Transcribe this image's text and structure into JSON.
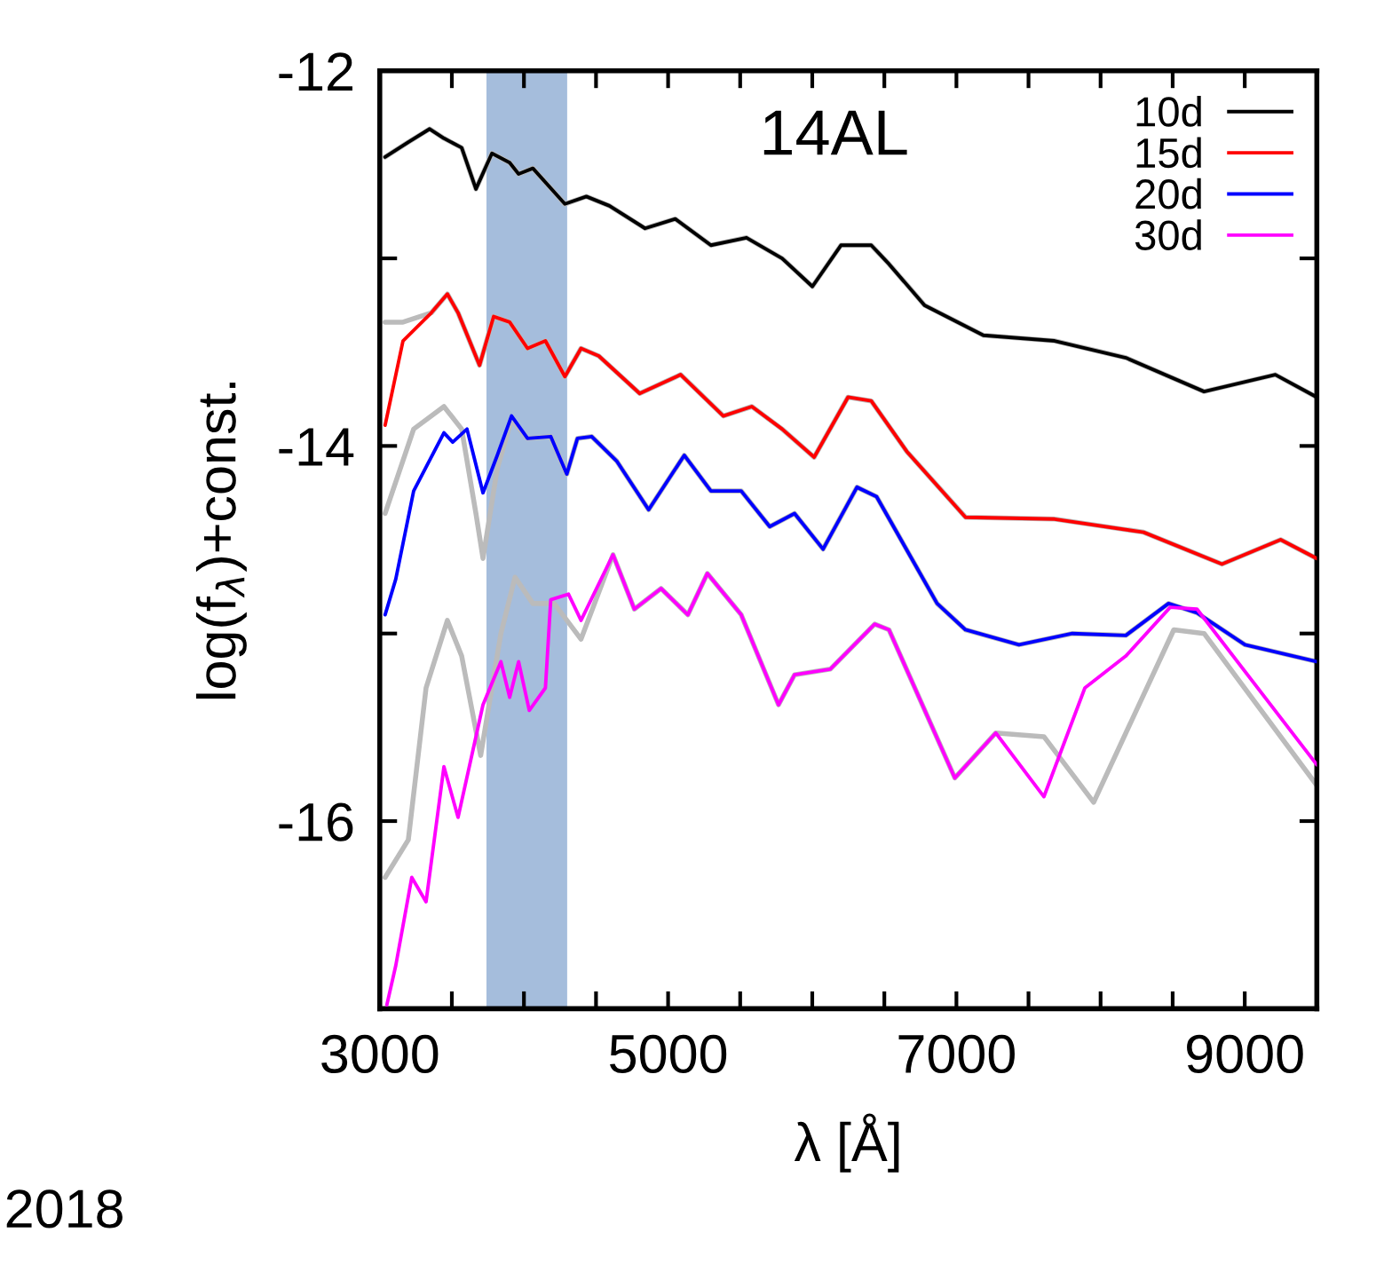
{
  "chart_data": {
    "type": "line",
    "xlabel": "λ [Å]",
    "ylabel": "log(f$_{λ}$)+const.",
    "annotations": [
      "14AL",
      "2018"
    ],
    "xlim": [
      3000,
      9500
    ],
    "ylim": [
      -17,
      -12
    ],
    "xticks": [
      3000,
      {
        "value": 3500,
        "label": null
      },
      {
        "value": 4000,
        "label": null
      },
      {
        "value": 4500,
        "label": null
      },
      5000,
      {
        "value": 5500,
        "label": null
      },
      {
        "value": 6000,
        "label": null
      },
      {
        "value": 6500,
        "label": null
      },
      7000,
      {
        "value": 7500,
        "label": null
      },
      {
        "value": 8000,
        "label": null
      },
      {
        "value": 8500,
        "label": null
      },
      9000
    ],
    "yticks": [
      -12,
      {
        "value": -13,
        "label": null
      },
      -14,
      {
        "value": -15,
        "label": null
      },
      -16
    ],
    "bands": [
      {
        "axis": "x",
        "from": 3740,
        "to": 4300,
        "color": "#5b86bf"
      }
    ],
    "grid": false,
    "legend": "top right",
    "marker": "none",
    "line_style": "solid",
    "series": [
      {
        "color": "#bbbbbb",
        "x": [
          3037,
          3198,
          3346,
          3445,
          3568,
          3667,
          3778,
          3901,
          3963,
          4062,
          4284,
          4433,
          4593,
          4840,
          5050,
          5297,
          5544,
          5791,
          6001,
          6199,
          6409,
          6532,
          6779,
          7187,
          7681,
          8175,
          8718,
          9212,
          9500
        ],
        "values": [
          -12.46,
          -12.38,
          -12.31,
          -12.36,
          -12.41,
          -12.63,
          -12.44,
          -12.49,
          -12.55,
          -12.52,
          -12.71,
          -12.67,
          -12.72,
          -12.84,
          -12.79,
          -12.93,
          -12.89,
          -13.0,
          -13.15,
          -12.93,
          -12.93,
          -13.03,
          -13.25,
          -13.41,
          -13.44,
          -13.53,
          -13.71,
          -13.62,
          -13.74
        ]
      },
      {
        "color": "#bbbbbb",
        "x": [
          3037,
          3161,
          3358,
          3469,
          3543,
          3692,
          3790,
          3901,
          4025,
          4149,
          4284,
          4396,
          4519,
          4803,
          5087,
          5383,
          5581,
          5791,
          6013,
          6248,
          6409,
          6656,
          7063,
          7681,
          8298,
          8842,
          9249,
          9500
        ],
        "values": [
          -13.34,
          -13.34,
          -13.29,
          -13.19,
          -13.29,
          -13.57,
          -13.31,
          -13.34,
          -13.48,
          -13.44,
          -13.63,
          -13.48,
          -13.52,
          -13.72,
          -13.62,
          -13.84,
          -13.79,
          -13.91,
          -14.06,
          -13.74,
          -13.76,
          -14.03,
          -14.38,
          -14.39,
          -14.46,
          -14.63,
          -14.5,
          -14.6
        ]
      },
      {
        "color": "#bbbbbb",
        "x": [
          3037,
          3235,
          3445,
          3568,
          3667,
          3716,
          3815,
          3914,
          4025,
          4186,
          4297,
          4371,
          4470,
          4643,
          4865,
          5112,
          5297,
          5507,
          5705,
          5877,
          6075,
          6310,
          6446,
          6866,
          7063,
          7434,
          7804,
          8175,
          8471,
          8669,
          9002,
          9500
        ],
        "values": [
          -14.36,
          -13.91,
          -13.79,
          -13.91,
          -14.36,
          -14.6,
          -14.12,
          -13.86,
          -13.96,
          -13.95,
          -14.15,
          -13.96,
          -13.95,
          -14.08,
          -14.34,
          -14.05,
          -14.24,
          -14.24,
          -14.43,
          -14.36,
          -14.55,
          -14.22,
          -14.27,
          -14.84,
          -14.98,
          -15.06,
          -15.0,
          -15.01,
          -14.84,
          -14.89,
          -15.06,
          -15.15
        ]
      },
      {
        "color": "#bbbbbb",
        "x": [
          3037,
          3198,
          3321,
          3469,
          3568,
          3700,
          3840,
          3938,
          4062,
          4210,
          4396,
          4618,
          4766,
          4951,
          5137,
          5272,
          5507,
          5766,
          5877,
          6125,
          6433,
          6532,
          6989,
          7273,
          7607,
          7952,
          8508,
          8718,
          9500
        ],
        "values": [
          -16.3,
          -16.1,
          -15.29,
          -14.93,
          -15.12,
          -15.65,
          -15.0,
          -14.7,
          -14.84,
          -14.84,
          -15.03,
          -14.58,
          -14.87,
          -14.76,
          -14.9,
          -14.68,
          -14.9,
          -15.38,
          -15.22,
          -15.19,
          -14.95,
          -14.98,
          -15.77,
          -15.53,
          -15.55,
          -15.9,
          -14.98,
          -15.0,
          -15.81
        ]
      },
      {
        "name": "10d",
        "color": "#000000",
        "x": [
          3037,
          3198,
          3346,
          3445,
          3568,
          3667,
          3778,
          3901,
          3963,
          4062,
          4284,
          4433,
          4593,
          4840,
          5050,
          5297,
          5544,
          5791,
          6001,
          6199,
          6409,
          6532,
          6779,
          7187,
          7681,
          8175,
          8718,
          9212,
          9500
        ],
        "values": [
          -12.46,
          -12.38,
          -12.31,
          -12.36,
          -12.41,
          -12.63,
          -12.44,
          -12.49,
          -12.55,
          -12.52,
          -12.71,
          -12.67,
          -12.72,
          -12.84,
          -12.79,
          -12.93,
          -12.89,
          -13.0,
          -13.15,
          -12.93,
          -12.93,
          -13.03,
          -13.25,
          -13.41,
          -13.44,
          -13.53,
          -13.71,
          -13.62,
          -13.74
        ]
      },
      {
        "name": "15d",
        "color": "#ff0000",
        "x": [
          3037,
          3161,
          3358,
          3469,
          3543,
          3692,
          3790,
          3901,
          4025,
          4149,
          4284,
          4396,
          4519,
          4803,
          5087,
          5383,
          5581,
          5791,
          6013,
          6248,
          6409,
          6656,
          7063,
          7681,
          8298,
          8842,
          9249,
          9500
        ],
        "values": [
          -13.89,
          -13.44,
          -13.29,
          -13.19,
          -13.29,
          -13.57,
          -13.31,
          -13.34,
          -13.48,
          -13.44,
          -13.63,
          -13.48,
          -13.52,
          -13.72,
          -13.62,
          -13.84,
          -13.79,
          -13.91,
          -14.06,
          -13.74,
          -13.76,
          -14.03,
          -14.38,
          -14.39,
          -14.46,
          -14.63,
          -14.5,
          -14.6
        ]
      },
      {
        "name": "20d",
        "color": "#0000ff",
        "x": [
          3037,
          3111,
          3235,
          3445,
          3506,
          3605,
          3716,
          3815,
          3914,
          4025,
          4186,
          4297,
          4371,
          4470,
          4643,
          4865,
          5112,
          5297,
          5507,
          5705,
          5877,
          6075,
          6310,
          6446,
          6866,
          7063,
          7434,
          7804,
          8175,
          8471,
          8669,
          9002,
          9500
        ],
        "values": [
          -14.9,
          -14.71,
          -14.24,
          -13.93,
          -13.98,
          -13.91,
          -14.25,
          -14.05,
          -13.84,
          -13.96,
          -13.95,
          -14.15,
          -13.96,
          -13.95,
          -14.08,
          -14.34,
          -14.05,
          -14.24,
          -14.24,
          -14.43,
          -14.36,
          -14.55,
          -14.22,
          -14.27,
          -14.84,
          -14.98,
          -15.06,
          -15.0,
          -15.01,
          -14.84,
          -14.89,
          -15.06,
          -15.15
        ]
      },
      {
        "name": "30d",
        "color": "#ff00ff",
        "x": [
          3049,
          3111,
          3222,
          3321,
          3445,
          3543,
          3716,
          3840,
          3901,
          3963,
          4037,
          4149,
          4186,
          4309,
          4396,
          4618,
          4766,
          4951,
          5137,
          5272,
          5507,
          5766,
          5877,
          6125,
          6433,
          6532,
          6989,
          7273,
          7607,
          7891,
          8175,
          8483,
          8669,
          9500
        ],
        "values": [
          -16.98,
          -16.77,
          -16.3,
          -16.43,
          -15.71,
          -15.98,
          -15.38,
          -15.15,
          -15.34,
          -15.15,
          -15.41,
          -15.29,
          -14.82,
          -14.79,
          -14.93,
          -14.58,
          -14.87,
          -14.76,
          -14.9,
          -14.68,
          -14.9,
          -15.38,
          -15.22,
          -15.19,
          -14.95,
          -14.98,
          -15.77,
          -15.53,
          -15.87,
          -15.29,
          -15.12,
          -14.86,
          -14.87,
          -15.7
        ]
      }
    ]
  }
}
